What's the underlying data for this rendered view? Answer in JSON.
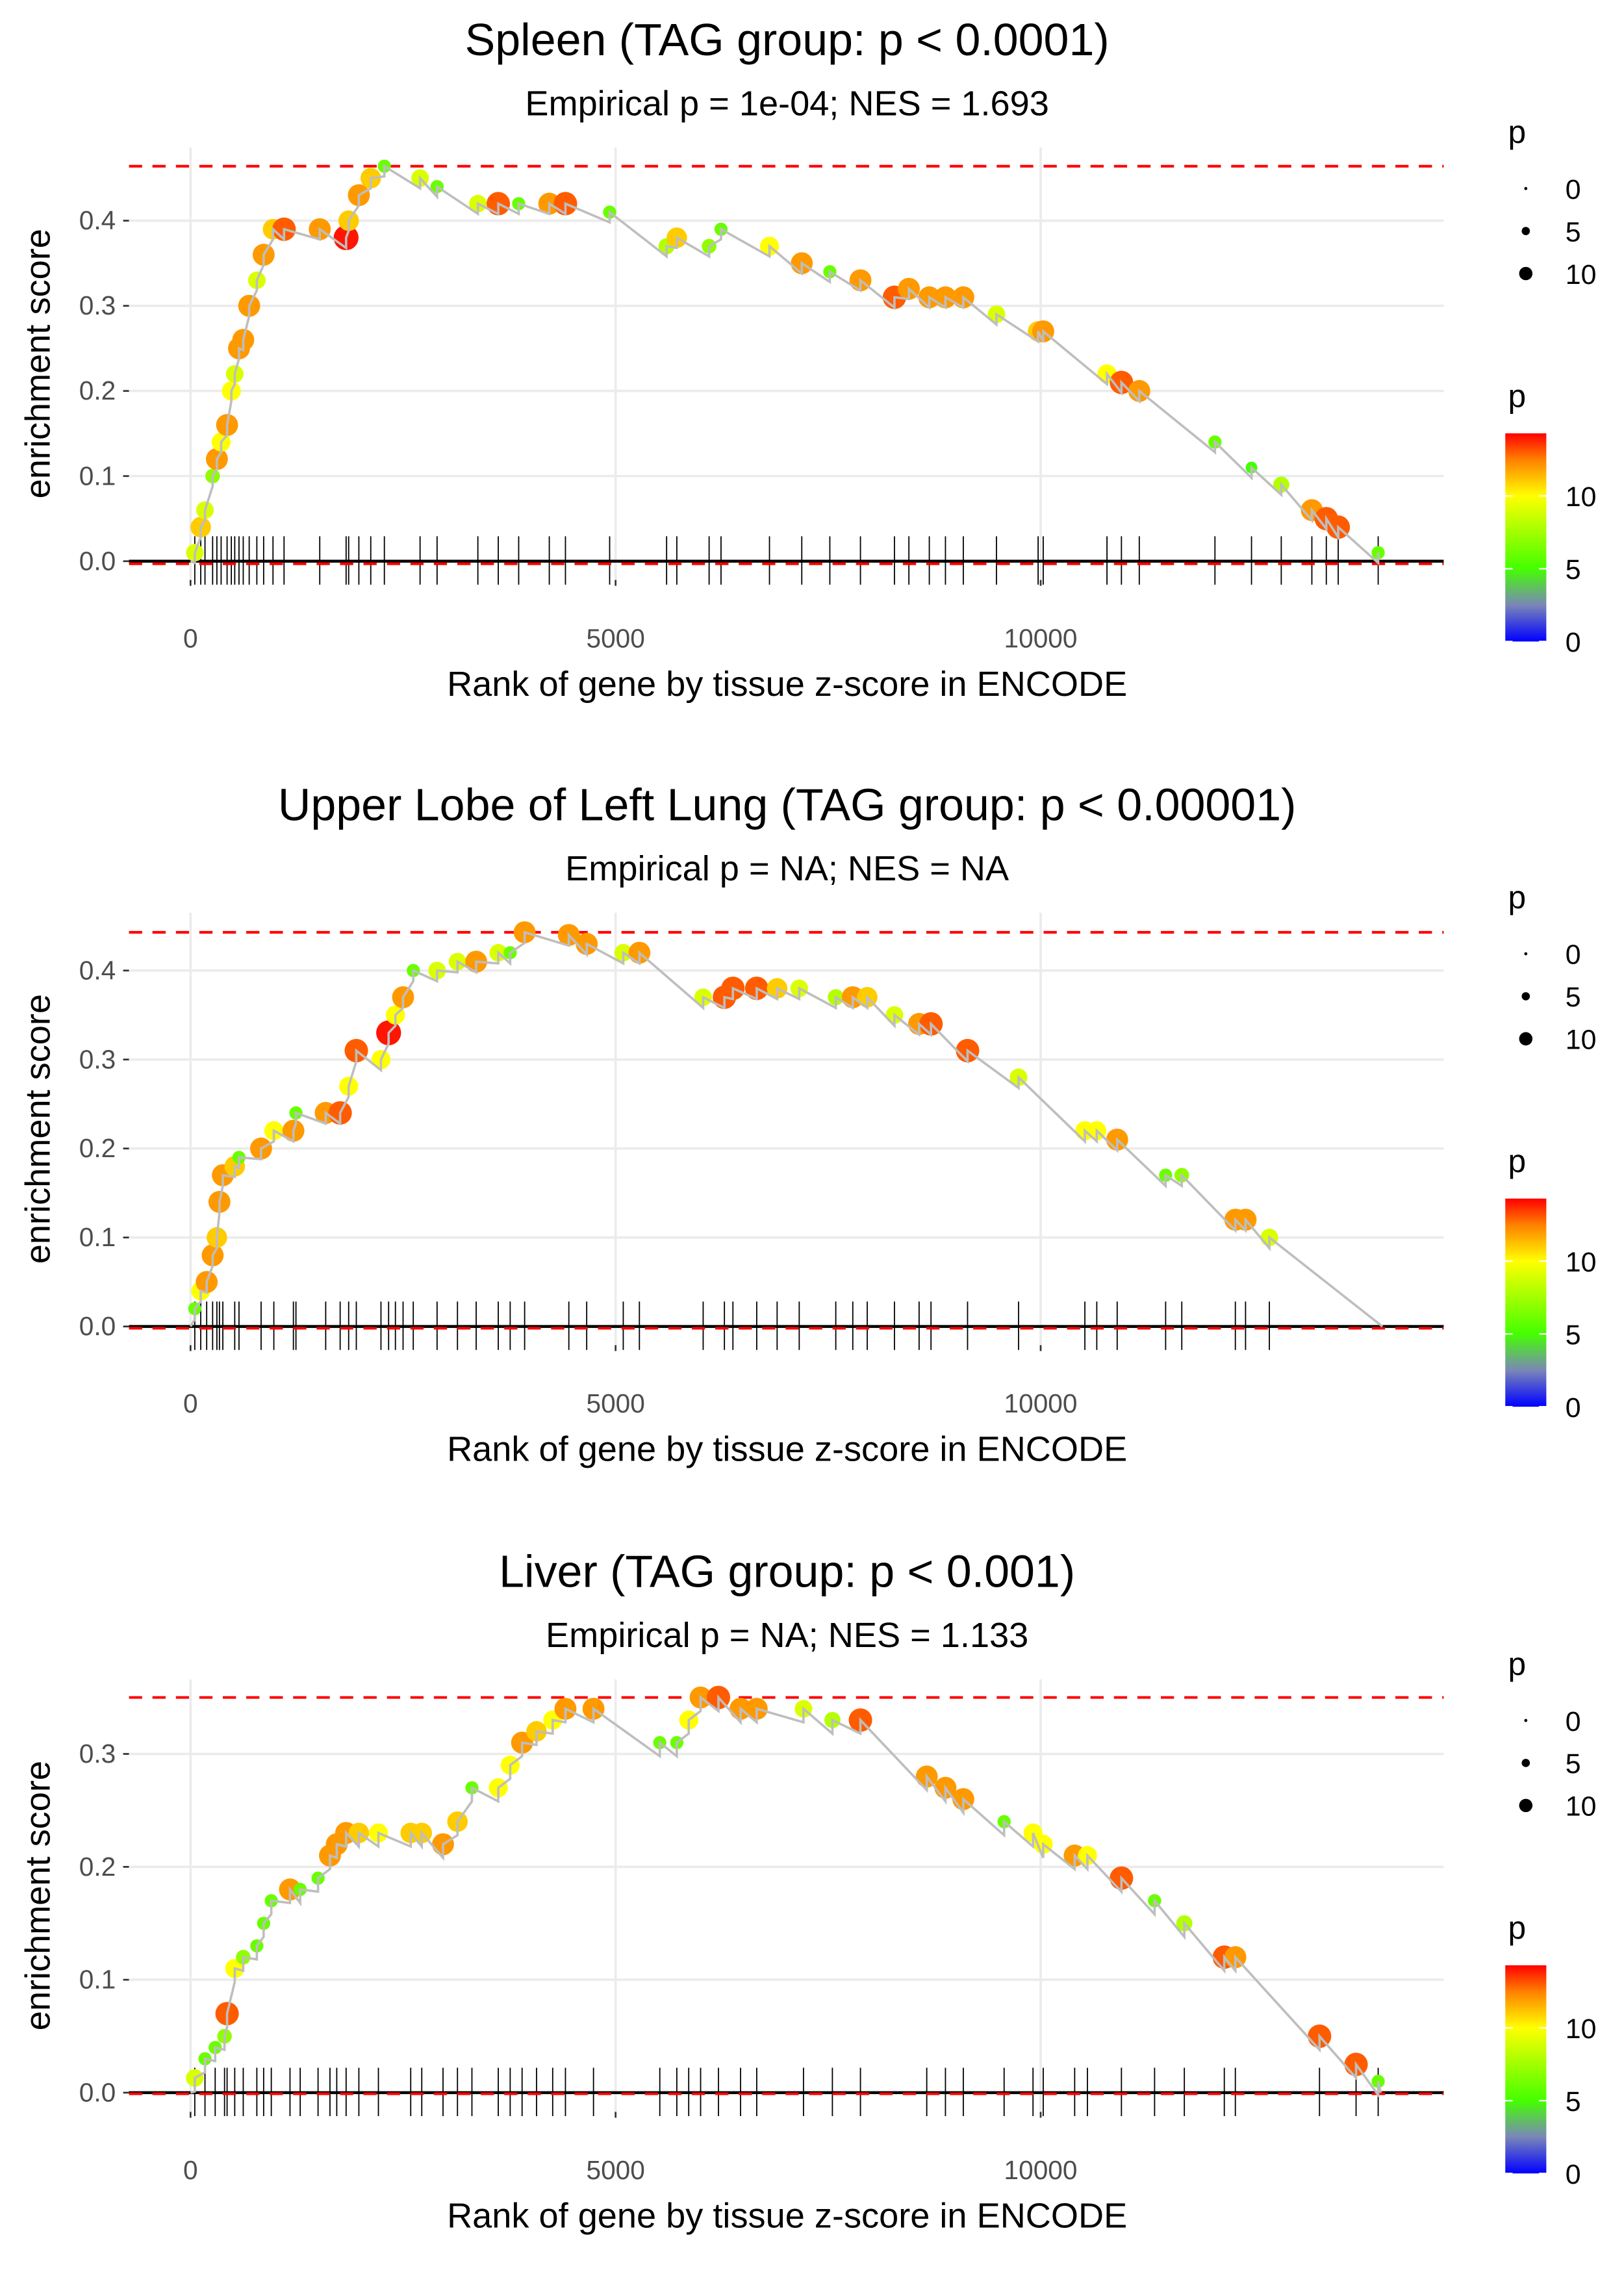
{
  "colors": {
    "curve": "#bebebe",
    "dashed": "#ff0000",
    "grid": "#ebebeb",
    "rug": "#000000",
    "scale_stops": [
      [
        0,
        "#0000ff"
      ],
      [
        2.5,
        "#7a86b8"
      ],
      [
        5,
        "#44ff00"
      ],
      [
        10,
        "#ffff00"
      ],
      [
        12.5,
        "#ff8000"
      ],
      [
        14.3,
        "#ff0000"
      ]
    ]
  },
  "legend": {
    "size_title": "p",
    "size_labels": [
      "0",
      "5",
      "10"
    ],
    "size_values": [
      0,
      5,
      10
    ],
    "color_title": "p",
    "color_labels": [
      "10",
      "5",
      "0"
    ],
    "color_values": [
      10,
      5,
      0
    ],
    "color_max": 14.3
  },
  "chart_data": [
    {
      "type": "scatter",
      "title": "Spleen (TAG group: p < 0.0001)",
      "subtitle": "Empirical p = 1e-04; NES = 1.693",
      "xlabel": "Rank of gene by tissue z-score in ENCODE",
      "ylabel": "enrichment score",
      "xlim": [
        -724,
        14741
      ],
      "ylim": [
        -0.022,
        0.486
      ],
      "xticks": [
        0,
        5000,
        10000
      ],
      "xtick_labels": [
        "0",
        "5000",
        "10000"
      ],
      "yticks": [
        0,
        0.1,
        0.2,
        0.3,
        0.4
      ],
      "ytick_labels": [
        "0.0",
        "0.1",
        "0.2",
        "0.3",
        "0.4"
      ],
      "max_es": 0.464,
      "min_es": -0.003,
      "end_rank": 13970,
      "hits": [
        [
          50,
          0.01,
          9
        ],
        [
          120,
          0.04,
          11
        ],
        [
          170,
          0.06,
          9
        ],
        [
          260,
          0.1,
          7
        ],
        [
          310,
          0.12,
          12
        ],
        [
          360,
          0.14,
          10
        ],
        [
          430,
          0.16,
          12
        ],
        [
          480,
          0.2,
          10
        ],
        [
          520,
          0.22,
          9
        ],
        [
          570,
          0.25,
          12
        ],
        [
          620,
          0.26,
          12
        ],
        [
          690,
          0.3,
          12
        ],
        [
          780,
          0.33,
          9
        ],
        [
          860,
          0.36,
          12
        ],
        [
          970,
          0.39,
          11
        ],
        [
          1100,
          0.39,
          13
        ],
        [
          1520,
          0.39,
          12
        ],
        [
          1830,
          0.38,
          14
        ],
        [
          1860,
          0.4,
          11
        ],
        [
          1980,
          0.43,
          12
        ],
        [
          2120,
          0.45,
          11
        ],
        [
          2280,
          0.464,
          6
        ],
        [
          2700,
          0.45,
          9
        ],
        [
          2900,
          0.44,
          6
        ],
        [
          3380,
          0.42,
          9
        ],
        [
          3620,
          0.42,
          13
        ],
        [
          3860,
          0.42,
          6
        ],
        [
          4220,
          0.42,
          12
        ],
        [
          4410,
          0.42,
          13
        ],
        [
          4930,
          0.41,
          6
        ],
        [
          5600,
          0.37,
          8
        ],
        [
          5720,
          0.38,
          11
        ],
        [
          6100,
          0.37,
          7
        ],
        [
          6240,
          0.39,
          6
        ],
        [
          6810,
          0.37,
          10
        ],
        [
          7190,
          0.35,
          12
        ],
        [
          7520,
          0.34,
          6
        ],
        [
          7880,
          0.33,
          12
        ],
        [
          8280,
          0.31,
          13
        ],
        [
          8450,
          0.32,
          12
        ],
        [
          8690,
          0.31,
          12
        ],
        [
          8880,
          0.31,
          12
        ],
        [
          9090,
          0.31,
          12
        ],
        [
          9480,
          0.29,
          9
        ],
        [
          9970,
          0.27,
          11
        ],
        [
          10030,
          0.27,
          12
        ],
        [
          10780,
          0.22,
          10
        ],
        [
          10950,
          0.21,
          13
        ],
        [
          11160,
          0.2,
          12
        ],
        [
          12050,
          0.14,
          6
        ],
        [
          12480,
          0.11,
          5
        ],
        [
          12830,
          0.09,
          8
        ],
        [
          13190,
          0.06,
          12
        ],
        [
          13360,
          0.05,
          13
        ],
        [
          13500,
          0.04,
          13
        ],
        [
          13970,
          0.01,
          6
        ]
      ]
    },
    {
      "type": "scatter",
      "title": "Upper Lobe of Left Lung (TAG group: p < 0.00001)",
      "subtitle": "Empirical p = NA; NES = NA",
      "xlabel": "Rank of gene by tissue z-score in ENCODE",
      "ylabel": "enrichment score",
      "xlim": [
        -724,
        14741
      ],
      "ylim": [
        -0.021,
        0.465
      ],
      "xticks": [
        0,
        5000,
        10000
      ],
      "xtick_labels": [
        "0",
        "5000",
        "10000"
      ],
      "yticks": [
        0,
        0.1,
        0.2,
        0.3,
        0.4
      ],
      "ytick_labels": [
        "0.0",
        "0.1",
        "0.2",
        "0.3",
        "0.4"
      ],
      "max_es": 0.443,
      "min_es": -0.002,
      "end_rank": 14020,
      "hits": [
        [
          50,
          0.02,
          6
        ],
        [
          120,
          0.04,
          10
        ],
        [
          190,
          0.05,
          12
        ],
        [
          260,
          0.08,
          12
        ],
        [
          310,
          0.1,
          11
        ],
        [
          340,
          0.14,
          12
        ],
        [
          380,
          0.17,
          12
        ],
        [
          520,
          0.18,
          11
        ],
        [
          570,
          0.19,
          6
        ],
        [
          830,
          0.2,
          12
        ],
        [
          980,
          0.22,
          10
        ],
        [
          1210,
          0.22,
          12
        ],
        [
          1240,
          0.24,
          6
        ],
        [
          1590,
          0.24,
          12
        ],
        [
          1760,
          0.24,
          13
        ],
        [
          1860,
          0.27,
          10
        ],
        [
          1950,
          0.31,
          13
        ],
        [
          2240,
          0.3,
          10
        ],
        [
          2330,
          0.33,
          14
        ],
        [
          2410,
          0.35,
          10
        ],
        [
          2500,
          0.37,
          12
        ],
        [
          2620,
          0.4,
          6
        ],
        [
          2900,
          0.4,
          9
        ],
        [
          3140,
          0.41,
          9
        ],
        [
          3360,
          0.41,
          12
        ],
        [
          3620,
          0.42,
          9
        ],
        [
          3760,
          0.42,
          6
        ],
        [
          3930,
          0.443,
          12
        ],
        [
          4450,
          0.44,
          12
        ],
        [
          4660,
          0.43,
          12
        ],
        [
          5090,
          0.42,
          9
        ],
        [
          5280,
          0.42,
          12
        ],
        [
          6030,
          0.37,
          9
        ],
        [
          6280,
          0.37,
          13
        ],
        [
          6380,
          0.38,
          13
        ],
        [
          6660,
          0.38,
          13
        ],
        [
          6900,
          0.38,
          11
        ],
        [
          7160,
          0.38,
          9
        ],
        [
          7590,
          0.37,
          8
        ],
        [
          7790,
          0.37,
          12
        ],
        [
          7960,
          0.37,
          11
        ],
        [
          8280,
          0.35,
          9
        ],
        [
          8570,
          0.34,
          12
        ],
        [
          8710,
          0.34,
          13
        ],
        [
          9140,
          0.31,
          13
        ],
        [
          9740,
          0.28,
          9
        ],
        [
          10520,
          0.22,
          10
        ],
        [
          10660,
          0.22,
          10
        ],
        [
          10900,
          0.21,
          12
        ],
        [
          11470,
          0.17,
          6
        ],
        [
          11660,
          0.17,
          7
        ],
        [
          12290,
          0.12,
          12
        ],
        [
          12410,
          0.12,
          12
        ],
        [
          12690,
          0.1,
          9
        ]
      ]
    },
    {
      "type": "scatter",
      "title": "Liver (TAG group: p < 0.001)",
      "subtitle": "Empirical p = NA; NES = 1.133",
      "xlabel": "Rank of gene by tissue z-score in ENCODE",
      "ylabel": "enrichment score",
      "xlim": [
        -724,
        14741
      ],
      "ylim": [
        -0.017,
        0.366
      ],
      "xticks": [
        0,
        5000,
        10000
      ],
      "xtick_labels": [
        "0",
        "5000",
        "10000"
      ],
      "yticks": [
        0,
        0.1,
        0.2,
        0.3
      ],
      "ytick_labels": [
        "0.0",
        "0.1",
        "0.2",
        "0.3"
      ],
      "max_es": 0.35,
      "min_es": -0.001,
      "end_rank": 14000,
      "hits": [
        [
          50,
          0.013,
          9
        ],
        [
          170,
          0.03,
          6
        ],
        [
          290,
          0.04,
          6
        ],
        [
          400,
          0.05,
          7
        ],
        [
          430,
          0.07,
          13
        ],
        [
          520,
          0.11,
          10
        ],
        [
          620,
          0.12,
          7
        ],
        [
          780,
          0.13,
          6
        ],
        [
          860,
          0.15,
          6
        ],
        [
          950,
          0.17,
          6
        ],
        [
          1170,
          0.18,
          12
        ],
        [
          1290,
          0.18,
          6
        ],
        [
          1500,
          0.19,
          6
        ],
        [
          1640,
          0.21,
          12
        ],
        [
          1720,
          0.22,
          12
        ],
        [
          1830,
          0.23,
          12
        ],
        [
          1980,
          0.23,
          11
        ],
        [
          2210,
          0.23,
          10
        ],
        [
          2590,
          0.23,
          11
        ],
        [
          2720,
          0.23,
          11
        ],
        [
          2970,
          0.22,
          12
        ],
        [
          3140,
          0.24,
          11
        ],
        [
          3310,
          0.27,
          6
        ],
        [
          3620,
          0.27,
          10
        ],
        [
          3760,
          0.29,
          10
        ],
        [
          3900,
          0.31,
          12
        ],
        [
          4070,
          0.32,
          11
        ],
        [
          4260,
          0.33,
          10
        ],
        [
          4410,
          0.34,
          12
        ],
        [
          4740,
          0.34,
          12
        ],
        [
          5520,
          0.31,
          6
        ],
        [
          5720,
          0.31,
          6
        ],
        [
          5860,
          0.33,
          10
        ],
        [
          6000,
          0.35,
          12
        ],
        [
          6210,
          0.35,
          13
        ],
        [
          6470,
          0.34,
          12
        ],
        [
          6660,
          0.34,
          12
        ],
        [
          7210,
          0.34,
          9
        ],
        [
          7550,
          0.33,
          8
        ],
        [
          7880,
          0.33,
          13
        ],
        [
          8660,
          0.28,
          12
        ],
        [
          8880,
          0.27,
          12
        ],
        [
          9090,
          0.26,
          12
        ],
        [
          9570,
          0.24,
          6
        ],
        [
          9910,
          0.23,
          10
        ],
        [
          10030,
          0.22,
          10
        ],
        [
          10400,
          0.21,
          12
        ],
        [
          10550,
          0.21,
          10
        ],
        [
          10950,
          0.19,
          13
        ],
        [
          11340,
          0.17,
          6
        ],
        [
          11690,
          0.15,
          8
        ],
        [
          12160,
          0.12,
          13
        ],
        [
          12290,
          0.12,
          12
        ],
        [
          13280,
          0.05,
          13
        ],
        [
          13710,
          0.025,
          13
        ],
        [
          13970,
          0.01,
          6
        ]
      ]
    }
  ]
}
